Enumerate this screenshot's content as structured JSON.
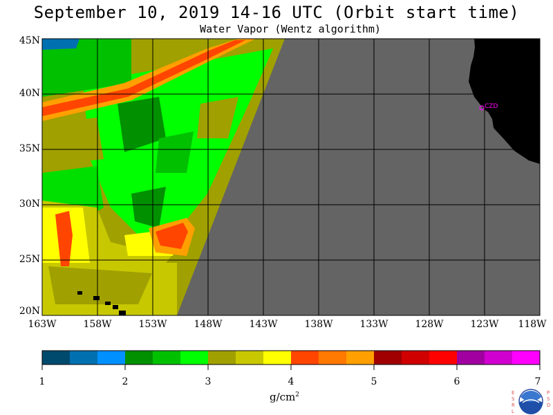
{
  "title": "September 10, 2019  14-16 UTC  (Orbit start time)",
  "subtitle": "Water Vapor (Wentz algorithm)",
  "lat_labels": [
    "45N",
    "40N",
    "35N",
    "30N",
    "25N",
    "20N"
  ],
  "lon_labels": [
    "163W",
    "158W",
    "153W",
    "148W",
    "143W",
    "138W",
    "133W",
    "128W",
    "123W",
    "118W"
  ],
  "station_label": "CZD",
  "colorbar": {
    "ticks": [
      "1",
      "2",
      "3",
      "4",
      "5",
      "6",
      "7"
    ],
    "unit_base": "g/cm",
    "unit_exp": "2",
    "colors": [
      "#004a6e",
      "#0070b0",
      "#0090ff",
      "#009000",
      "#00c000",
      "#00ff00",
      "#a0a000",
      "#c8c800",
      "#ffff00",
      "#ff4500",
      "#ff7800",
      "#ffa000",
      "#a00000",
      "#d00000",
      "#ff0000",
      "#a000a0",
      "#d000d0",
      "#ff00ff"
    ]
  },
  "colors": {
    "nodata": "#646464",
    "land": "#000000",
    "grid": "#000000",
    "station": "#ff00ff"
  },
  "logo": {
    "left": "ESRL",
    "right": "PSD",
    "center": "NOAA"
  }
}
